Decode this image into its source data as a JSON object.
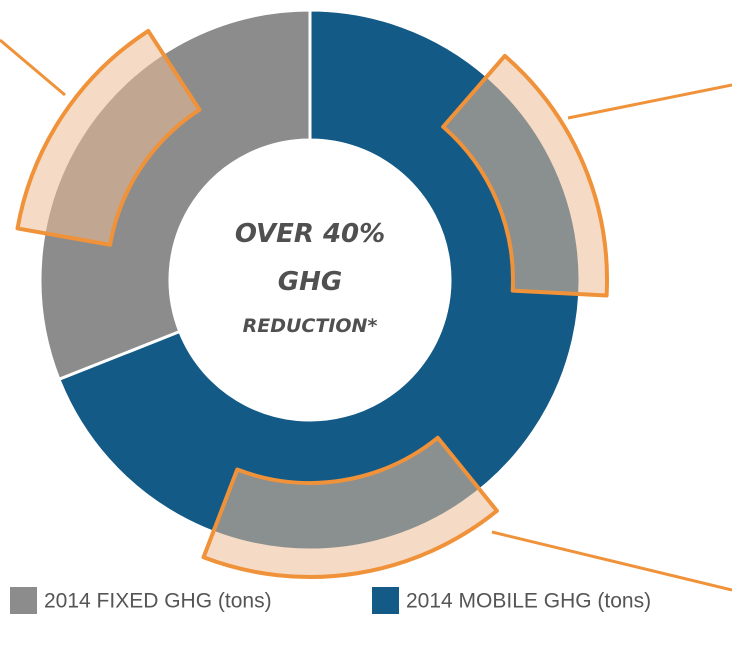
{
  "chart_data": {
    "type": "donut",
    "categories": [
      "2014 FIXED GHG (tons)",
      "2014 MOBILE GHG (tons)"
    ],
    "values": [
      31,
      69
    ],
    "colors": [
      "#8c8c8c",
      "#135a87"
    ],
    "center_text": [
      "OVER 40%",
      "GHG",
      "REDUCTION*"
    ],
    "legend": "bottom"
  }
}
